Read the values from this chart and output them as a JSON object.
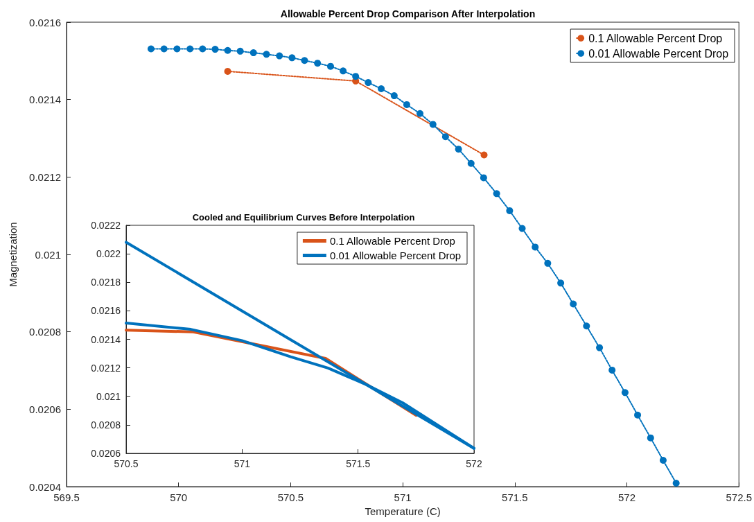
{
  "chart_data": [
    {
      "type": "line",
      "title": "Allowable Percent Drop Comparison After Interpolation",
      "xlabel": "Temperature (C)",
      "ylabel": "Magnetization",
      "xlim": [
        569.5,
        572.5
      ],
      "xticks": [
        569.5,
        570,
        570.5,
        571,
        571.5,
        572,
        572.5
      ],
      "ylim": [
        0.0204,
        0.0216
      ],
      "yticks": [
        0.0204,
        0.0206,
        0.0208,
        0.021,
        0.0212,
        0.0214,
        0.0216
      ],
      "grid": false,
      "legend": "top right",
      "marker": "circle",
      "line_style": "dotted",
      "series": [
        {
          "name": "0.1 Allowable Percent Drop",
          "color": "#d95319",
          "x": [
            570.219,
            570.79,
            571.363
          ],
          "values": [
            0.021473,
            0.021448,
            0.021257
          ]
        },
        {
          "name": "0.01 Allowable Percent Drop",
          "color": "#0072bd",
          "x": [
            569.877,
            569.935,
            569.993,
            570.051,
            570.107,
            570.163,
            570.219,
            570.275,
            570.334,
            570.392,
            570.45,
            570.506,
            570.562,
            570.62,
            570.678,
            570.734,
            570.79,
            570.846,
            570.904,
            570.962,
            571.018,
            571.077,
            571.135,
            571.191,
            571.249,
            571.305,
            571.361,
            571.419,
            571.477,
            571.533,
            571.591,
            571.647,
            571.705,
            571.761,
            571.82,
            571.878,
            571.934,
            571.992,
            572.048,
            572.106,
            572.162,
            572.22
          ],
          "values": [
            0.021531,
            0.021531,
            0.021531,
            0.021531,
            0.021531,
            0.02153,
            0.021527,
            0.021525,
            0.021521,
            0.021517,
            0.021513,
            0.021508,
            0.021501,
            0.021494,
            0.021486,
            0.021474,
            0.02146,
            0.021444,
            0.021428,
            0.02141,
            0.021387,
            0.021364,
            0.021336,
            0.021304,
            0.021272,
            0.021235,
            0.021198,
            0.021157,
            0.021113,
            0.021067,
            0.021019,
            0.020977,
            0.020926,
            0.020872,
            0.020815,
            0.020759,
            0.020701,
            0.020643,
            0.020585,
            0.020526,
            0.020468,
            0.020409
          ]
        }
      ]
    },
    {
      "type": "line",
      "title": "Cooled and Equilibrium Curves Before Interpolation",
      "xlim": [
        570.5,
        572
      ],
      "xticks": [
        570.5,
        571,
        571.5,
        572
      ],
      "ylim": [
        0.0206,
        0.0222
      ],
      "yticks": [
        0.0206,
        0.0208,
        0.021,
        0.0212,
        0.0214,
        0.0216,
        0.0218,
        0.022,
        0.0222
      ],
      "grid": false,
      "legend": "top right",
      "marker": "none",
      "line_style": "solid",
      "series": [
        {
          "name": "0.1 Allowable Percent Drop",
          "color": "#d95319",
          "x": [
            570.5,
            570.79,
            571.36,
            571.75
          ],
          "values": [
            0.021465,
            0.021452,
            0.021266,
            0.020867
          ]
        },
        {
          "name": "0.01 Allowable Percent Drop",
          "color": "#0072bd",
          "x": [
            570.5,
            570.779,
            571.0,
            571.209,
            571.37,
            571.531,
            571.692,
            572.0
          ],
          "values": [
            0.021514,
            0.02147,
            0.021391,
            0.021278,
            0.021199,
            0.021086,
            0.020955,
            0.020635
          ]
        },
        {
          "color": "#0072bd",
          "x": [
            570.5,
            572.0
          ],
          "values": [
            0.022081,
            0.020635
          ]
        }
      ]
    }
  ]
}
